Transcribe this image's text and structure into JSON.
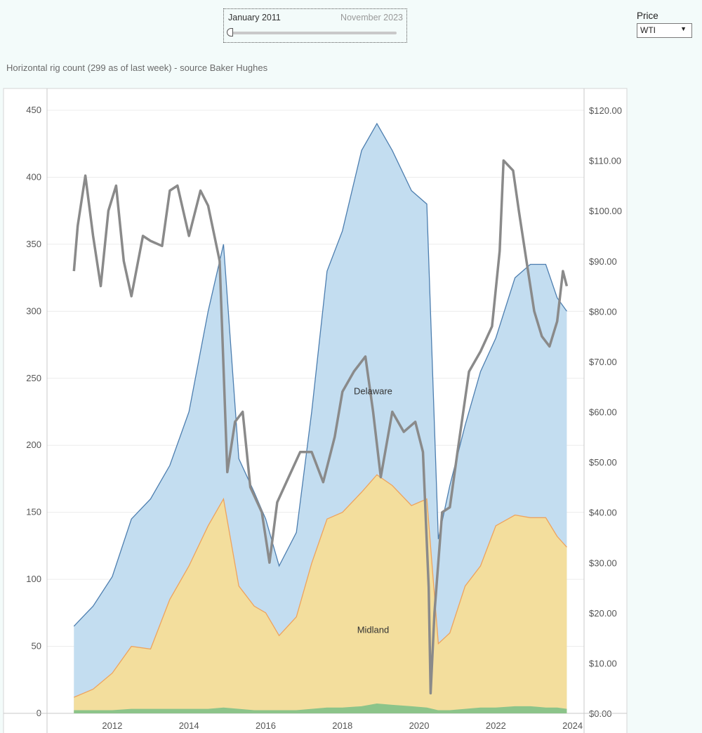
{
  "date_filter": {
    "start_label": "January 2011",
    "end_label": "November 2023"
  },
  "price_filter": {
    "label": "Price",
    "selected": "WTI"
  },
  "chart_title": "Horizontal rig count (299 as of last week) - source Baker Hughes",
  "chart_data": {
    "type": "area",
    "title": "Horizontal rig count (299 as of last week) - source Baker Hughes",
    "x_axis": {
      "range": [
        2010.3,
        2024.3
      ],
      "ticks": [
        2012,
        2014,
        2016,
        2018,
        2020,
        2022,
        2024
      ]
    },
    "y_left": {
      "range": [
        0,
        450
      ],
      "ticks": [
        0,
        50,
        100,
        150,
        200,
        250,
        300,
        350,
        400,
        450
      ]
    },
    "y_right": {
      "range": [
        0,
        120
      ],
      "ticks": [
        "$0.00",
        "$10.00",
        "$20.00",
        "$30.00",
        "$40.00",
        "$50.00",
        "$60.00",
        "$70.00",
        "$80.00",
        "$90.00",
        "$100.00",
        "$110.00",
        "$120.00"
      ]
    },
    "grid": true,
    "colors": {
      "delaware": "#c3ddf0",
      "delaware_line": "#4d7eaf",
      "midland": "#f3de9d",
      "midland_line": "#eea35d",
      "other": "#8cc48a",
      "price": "#8a8a8a"
    },
    "x": [
      2011.0,
      2011.5,
      2012.0,
      2012.5,
      2013.0,
      2013.5,
      2014.0,
      2014.5,
      2014.9,
      2015.3,
      2015.7,
      2016.0,
      2016.35,
      2016.8,
      2017.2,
      2017.6,
      2018.0,
      2018.5,
      2018.9,
      2019.3,
      2019.8,
      2020.2,
      2020.5,
      2020.8,
      2021.2,
      2021.6,
      2022.0,
      2022.5,
      2022.9,
      2023.3,
      2023.6,
      2023.85
    ],
    "series": [
      {
        "name": "Midland",
        "values": [
          12,
          18,
          30,
          50,
          48,
          85,
          110,
          140,
          160,
          95,
          80,
          75,
          58,
          72,
          112,
          145,
          150,
          165,
          178,
          170,
          155,
          160,
          52,
          60,
          95,
          110,
          140,
          148,
          146,
          146,
          132,
          124
        ]
      },
      {
        "name": "Delaware",
        "values": [
          65,
          80,
          102,
          145,
          160,
          185,
          225,
          300,
          350,
          190,
          165,
          145,
          110,
          135,
          225,
          330,
          360,
          420,
          440,
          420,
          390,
          380,
          130,
          170,
          215,
          255,
          280,
          325,
          335,
          335,
          310,
          300
        ]
      },
      {
        "name": "",
        "values": [
          2,
          2,
          2,
          3,
          3,
          3,
          3,
          3,
          4,
          3,
          2,
          2,
          2,
          2,
          3,
          4,
          4,
          5,
          7,
          6,
          5,
          4,
          2,
          2,
          3,
          4,
          4,
          5,
          5,
          4,
          4,
          3
        ]
      }
    ],
    "price": {
      "x": [
        2011.0,
        2011.1,
        2011.3,
        2011.5,
        2011.7,
        2011.9,
        2012.1,
        2012.3,
        2012.5,
        2012.8,
        2013.0,
        2013.3,
        2013.5,
        2013.7,
        2014.0,
        2014.3,
        2014.5,
        2014.8,
        2015.0,
        2015.2,
        2015.4,
        2015.6,
        2015.9,
        2016.1,
        2016.3,
        2016.6,
        2016.9,
        2017.2,
        2017.5,
        2017.8,
        2018.0,
        2018.3,
        2018.6,
        2018.8,
        2019.0,
        2019.3,
        2019.6,
        2019.9,
        2020.1,
        2020.25,
        2020.3,
        2020.4,
        2020.6,
        2020.8,
        2021.0,
        2021.3,
        2021.6,
        2021.9,
        2022.1,
        2022.2,
        2022.45,
        2022.6,
        2022.8,
        2023.0,
        2023.2,
        2023.4,
        2023.6,
        2023.75,
        2023.85
      ],
      "values": [
        88,
        97,
        107,
        95,
        85,
        100,
        105,
        90,
        83,
        95,
        94,
        93,
        104,
        105,
        95,
        104,
        101,
        90,
        48,
        58,
        60,
        45,
        40,
        30,
        42,
        47,
        52,
        52,
        46,
        55,
        64,
        68,
        71,
        60,
        47,
        60,
        56,
        58,
        52,
        25,
        4,
        20,
        40,
        41,
        52,
        68,
        72,
        77,
        92,
        110,
        108,
        100,
        90,
        80,
        75,
        73,
        78,
        88,
        85
      ]
    },
    "annotations": [
      "Delaware",
      "Midland"
    ]
  }
}
